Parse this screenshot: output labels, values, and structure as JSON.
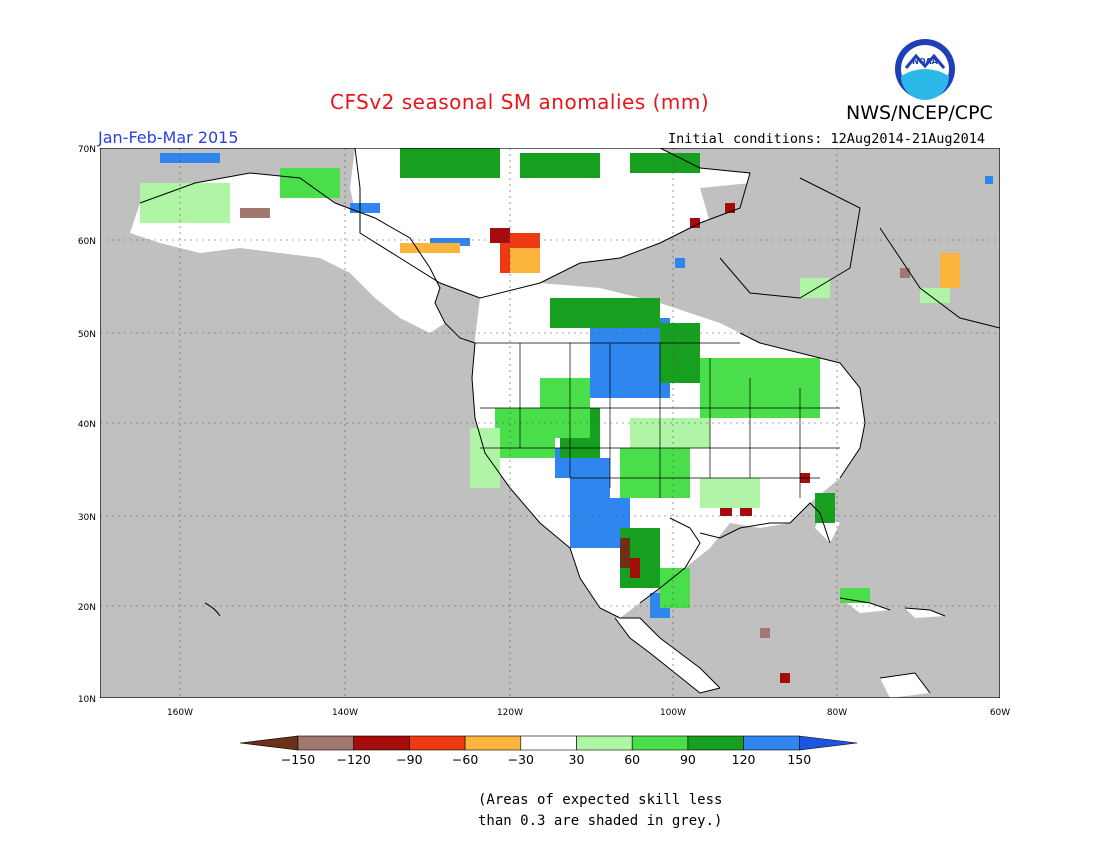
{
  "header": {
    "title": "CFSv2 seasonal SM anomalies (mm)",
    "agency": "NWS/NCEP/CPC",
    "season": "Jan-Feb-Mar 2015",
    "initial_conditions": "Initial conditions: 12Aug2014-21Aug2014"
  },
  "logo": {
    "text": "NOAA"
  },
  "map": {
    "lat_labels": [
      "70N",
      "60N",
      "50N",
      "40N",
      "30N",
      "20N",
      "10N"
    ],
    "lon_labels": [
      "160W",
      "140W",
      "120W",
      "100W",
      "80W",
      "60W"
    ],
    "colors": {
      "background": "#c0c0c0",
      "land": "#ffffff",
      "coast": "#000000"
    }
  },
  "colorbar": {
    "tick_labels": [
      "-150",
      "-120",
      "-90",
      "-60",
      "-30",
      "30",
      "60",
      "90",
      "120",
      "150"
    ],
    "colors": [
      "#6e3018",
      "#a17870",
      "#a50c0c",
      "#ee3a12",
      "#fdb43c",
      "#ffffff",
      "#b0f5a6",
      "#4ade4a",
      "#179f20",
      "#2f86ee",
      "#1c56e0"
    ]
  },
  "footnote": {
    "line1": "(Areas of expected skill less",
    "line2": "than 0.3 are shaded in grey.)"
  }
}
